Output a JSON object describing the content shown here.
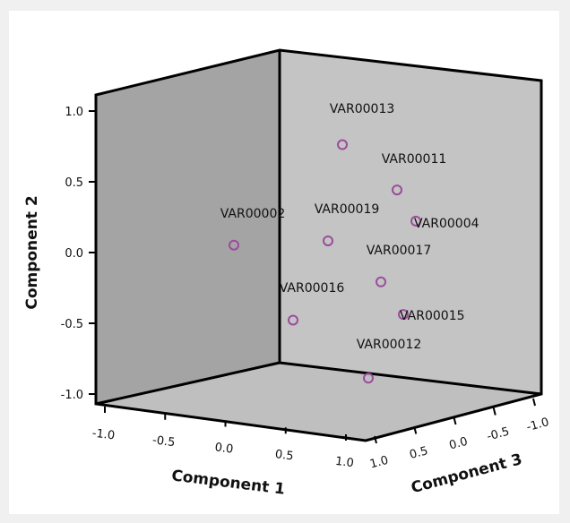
{
  "chart_data": {
    "type": "scatter",
    "title": "",
    "axes": {
      "x": {
        "label": "Component 1",
        "range": [
          -1.0,
          1.0
        ],
        "ticks": [
          -1.0,
          -0.5,
          0.0,
          0.5,
          1.0
        ],
        "tick_labels": [
          "-1.0",
          "-0.5",
          "0.0",
          "0.5",
          "1.0"
        ]
      },
      "y": {
        "label": "Component 2",
        "range": [
          -1.0,
          1.0
        ],
        "ticks": [
          -1.0,
          -0.5,
          0.0,
          0.5,
          1.0
        ],
        "tick_labels": [
          "-1.0",
          "-0.5",
          "0.0",
          "0.5",
          "1.0"
        ]
      },
      "z": {
        "label": "Component 3",
        "range": [
          -1.0,
          1.0
        ],
        "ticks": [
          1.0,
          0.5,
          0.0,
          -0.5,
          -1.0
        ],
        "tick_labels": [
          "1.0",
          "0.5",
          "0.0",
          "-0.5",
          "-1.0"
        ]
      }
    },
    "points": [
      {
        "label": "VAR00013",
        "y": 0.87
      },
      {
        "label": "VAR00011",
        "y": 0.55
      },
      {
        "label": "VAR00004",
        "y": 0.33
      },
      {
        "label": "VAR00002",
        "y": 0.16
      },
      {
        "label": "VAR00019",
        "y": 0.19
      },
      {
        "label": "VAR00017",
        "y": -0.1
      },
      {
        "label": "VAR00016",
        "y": -0.37
      },
      {
        "label": "VAR00015",
        "y": -0.33
      },
      {
        "label": "VAR00012",
        "y": -0.78
      }
    ],
    "grid": false,
    "legend": "none",
    "colors": {
      "background": "#f0f0f0",
      "chart_area": "#ffffff",
      "left_wall": "#a4a4a4",
      "back_wall": "#c4c4c4",
      "floor": "#bfbfbf",
      "marker": "#9b4c9b"
    }
  }
}
